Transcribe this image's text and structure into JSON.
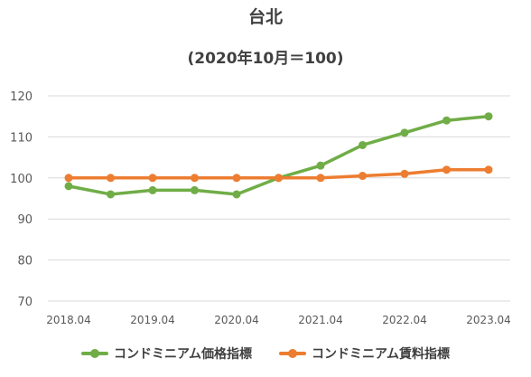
{
  "chart_data": {
    "type": "line",
    "title": "台北",
    "subtitle": "(2020年10月＝100)",
    "x": [
      "2018.04",
      "2018.10",
      "2019.04",
      "2019.10",
      "2020.04",
      "2020.10",
      "2021.04",
      "2021.10",
      "2022.04",
      "2022.10",
      "2023.04"
    ],
    "x_tick_labels": [
      "2018.04",
      "2019.04",
      "2020.04",
      "2021.04",
      "2022.04",
      "2023.04"
    ],
    "y_ticks": [
      70,
      80,
      90,
      100,
      110,
      120
    ],
    "ylim": [
      70,
      120
    ],
    "grid": true,
    "legend_position": "bottom",
    "series": [
      {
        "name": "コンドミニアム価格指標",
        "color": "#70AD47",
        "values": [
          98,
          96,
          97,
          97,
          96,
          100,
          103,
          108,
          111,
          114,
          115
        ]
      },
      {
        "name": "コンドミニアム賃料指標",
        "color": "#ED7D31",
        "values": [
          100,
          100,
          100,
          100,
          100,
          100,
          100,
          100.5,
          101,
          102,
          102
        ]
      }
    ]
  }
}
